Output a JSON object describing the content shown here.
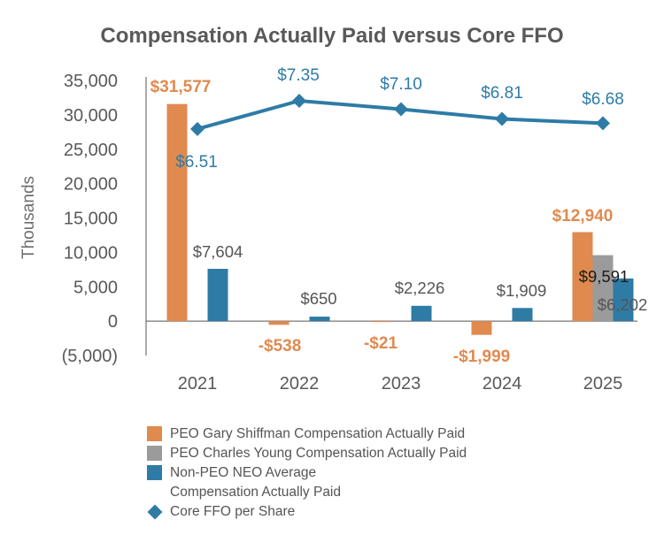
{
  "chart_data": {
    "type": "bar+line",
    "title": "Compensation Actually Paid versus Core FFO",
    "ylabel": "Thousands",
    "ylim": [
      -5000,
      35000
    ],
    "yticks": [
      35000,
      30000,
      25000,
      20000,
      15000,
      10000,
      5000,
      0,
      -5000
    ],
    "ytick_labels": [
      "35,000",
      "30,000",
      "25,000",
      "20,000",
      "15,000",
      "10,000",
      "5,000",
      "0",
      "(5,000)"
    ],
    "categories": [
      "2021",
      "2022",
      "2023",
      "2024",
      "2025"
    ],
    "series": [
      {
        "name": "PEO Gary Shiffman Compensation Actually Paid",
        "type": "bar",
        "color": "#E08A4F",
        "label_color": "#E08A4F",
        "values": [
          31577,
          -538,
          -21,
          -1999,
          12940
        ],
        "labels": [
          "$31,577",
          "-$538",
          "-$21",
          "-$1,999",
          "$12,940"
        ]
      },
      {
        "name": "PEO Charles Young Compensation Actually Paid",
        "type": "bar",
        "color": "#9B9B9B",
        "label_color": "#1a1a1a",
        "values": [
          null,
          null,
          null,
          null,
          9591
        ],
        "labels": [
          null,
          null,
          null,
          null,
          "$9,591"
        ]
      },
      {
        "name": "Non-PEO NEO Average Compensation Actually Paid",
        "legend_label": "Non-PEO NEO Average\nCompensation Actually Paid",
        "type": "bar",
        "color": "#2E7BA6",
        "label_color": "#555555",
        "values": [
          7604,
          650,
          2226,
          1909,
          6202
        ],
        "labels": [
          "$7,604",
          "$650",
          "$2,226",
          "$1,909",
          "$6,202"
        ]
      },
      {
        "name": "Core FFO per Share",
        "type": "line",
        "color": "#2E7BA6",
        "marker": "diamond",
        "values": [
          6.51,
          7.35,
          7.1,
          6.81,
          6.68
        ],
        "labels": [
          "$6.51",
          "$7.35",
          "$7.10",
          "$6.81",
          "$6.68"
        ]
      }
    ]
  }
}
